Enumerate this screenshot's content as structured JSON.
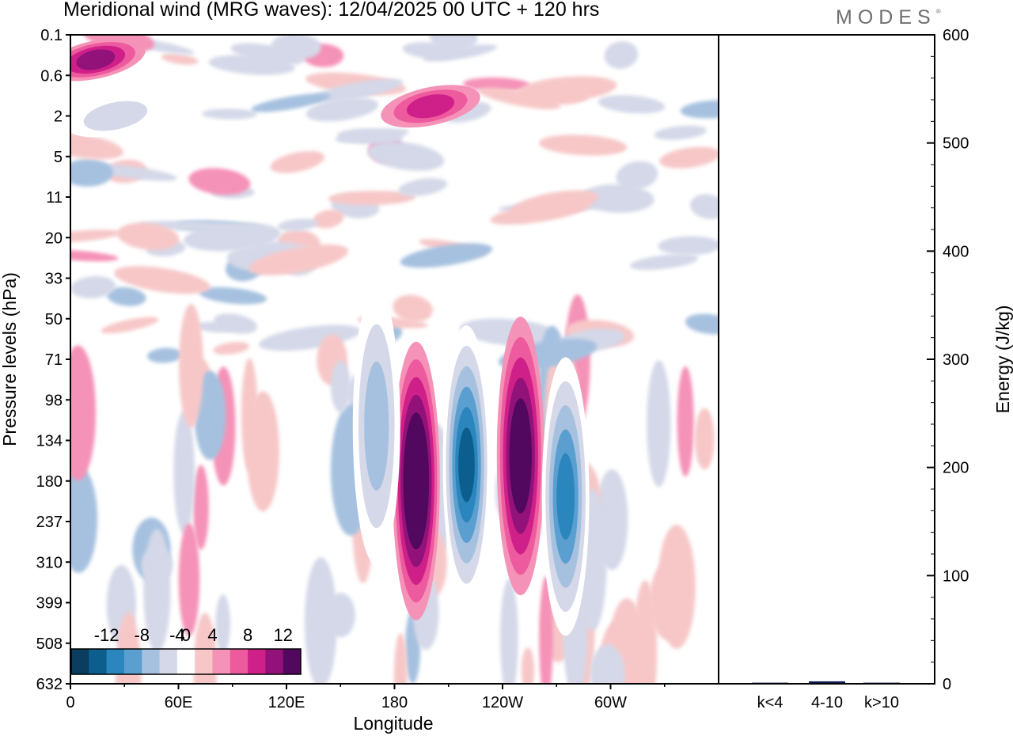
{
  "header": {
    "title": "Meridional wind (MRG waves):  12/04/2025  00 UTC  + 120 hrs",
    "logo": "MODES",
    "logo_mark": "®"
  },
  "chart_data": [
    {
      "type": "heatmap",
      "title": "Meridional wind (MRG waves):  12/04/2025  00 UTC  + 120 hrs",
      "xlabel": "Longitude",
      "ylabel": "Pressure levels (hPa)",
      "x_ticks": [
        "0",
        "60E",
        "120E",
        "180",
        "120W",
        "60W"
      ],
      "x_tick_values": [
        0,
        60,
        120,
        180,
        240,
        300
      ],
      "xlim": [
        0,
        360
      ],
      "y_ticks": [
        "0.1",
        "0.6",
        "2",
        "5",
        "11",
        "20",
        "33",
        "50",
        "71",
        "98",
        "134",
        "180",
        "237",
        "310",
        "399",
        "508",
        "632"
      ],
      "colorbar": {
        "labels": [
          "-12",
          "-8",
          "-4",
          "0",
          "4",
          "8",
          "12"
        ],
        "levels": [
          -14,
          -12,
          -10,
          -8,
          -6,
          -4,
          -2,
          2,
          4,
          6,
          8,
          10,
          12,
          14
        ],
        "colors": [
          "#0a3d5e",
          "#0c5e8f",
          "#2a86bd",
          "#5a9fd0",
          "#a6c1df",
          "#d4d8e8",
          "#ffffff",
          "#f7c7c8",
          "#f592b7",
          "#ee5a9e",
          "#cf208a",
          "#93127a",
          "#52085f"
        ]
      },
      "features": [
        {
          "lon": 192,
          "level": "180",
          "value": 14
        },
        {
          "lon": 220,
          "level": "160",
          "value": -12
        },
        {
          "lon": 250,
          "level": "150",
          "value": 12
        },
        {
          "lon": 275,
          "level": "200",
          "value": -10
        },
        {
          "lon": 170,
          "level": "120",
          "value": -6
        },
        {
          "lon": 14,
          "level": "0.3",
          "value": 8
        },
        {
          "lon": 200,
          "level": "1.5",
          "value": 6
        },
        {
          "lon": 25,
          "level": "2",
          "value": -4
        }
      ]
    },
    {
      "type": "bar",
      "categories": [
        "k<4",
        "4-10",
        "k>10"
      ],
      "values": [
        0.3,
        1.5,
        0.3
      ],
      "ylabel": "Energy (J/kg)",
      "ylim": [
        0,
        600
      ],
      "y_ticks": [
        "0",
        "100",
        "200",
        "300",
        "400",
        "500",
        "600"
      ],
      "y_tick_values": [
        0,
        100,
        200,
        300,
        400,
        500,
        600
      ],
      "bar_color": "#0b1a5a"
    }
  ]
}
